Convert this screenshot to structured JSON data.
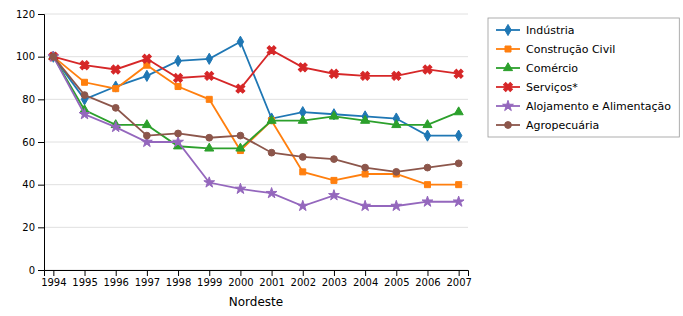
{
  "chart_data": {
    "type": "line",
    "xlabel": "Nordeste",
    "x": [
      1994,
      1995,
      1996,
      1997,
      1998,
      1999,
      2000,
      2001,
      2002,
      2003,
      2004,
      2005,
      2006,
      2007
    ],
    "xlim": [
      1993.7,
      2007.3
    ],
    "xticks": [
      1994,
      1995,
      1996,
      1997,
      1998,
      1999,
      2000,
      2001,
      2002,
      2003,
      2004,
      2005,
      2006,
      2007
    ],
    "ylim": [
      0,
      120
    ],
    "yticks": [
      0,
      20,
      40,
      60,
      80,
      100,
      120
    ],
    "grid": true,
    "legend": "right",
    "series": [
      {
        "name": "Indústria",
        "marker": "diamond",
        "values": [
          100,
          80,
          86,
          91,
          98,
          99,
          107,
          71,
          74,
          73,
          72,
          71,
          63,
          63
        ]
      },
      {
        "name": "Construção Civil",
        "marker": "square",
        "values": [
          100,
          88,
          85,
          96,
          86,
          80,
          56,
          70,
          46,
          42,
          45,
          45,
          40,
          40
        ]
      },
      {
        "name": "Comércio",
        "marker": "triangle",
        "values": [
          100,
          75,
          68,
          68,
          58,
          57,
          57,
          70,
          70,
          72,
          70,
          68,
          68,
          74
        ]
      },
      {
        "name": "Serviços*",
        "marker": "x",
        "values": [
          100,
          96,
          94,
          99,
          90,
          91,
          85,
          103,
          95,
          92,
          91,
          91,
          94,
          92
        ]
      },
      {
        "name": "Alojamento e Alimentação",
        "marker": "star",
        "values": [
          100,
          73,
          67,
          60,
          60,
          41,
          38,
          36,
          30,
          35,
          30,
          30,
          32,
          32
        ]
      },
      {
        "name": "Agropecuária",
        "marker": "circle",
        "values": [
          100,
          82,
          76,
          63,
          64,
          62,
          63,
          55,
          53,
          52,
          48,
          46,
          48,
          50
        ]
      }
    ]
  }
}
